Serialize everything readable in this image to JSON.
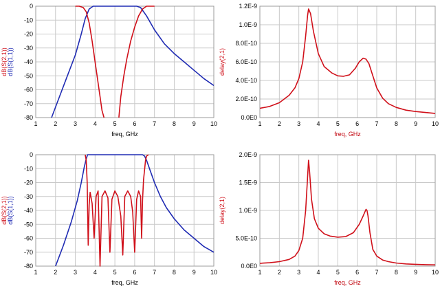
{
  "colors": {
    "blue": "#1f2bb3",
    "red": "#d0101a",
    "grid": "#c9c9c9",
    "frame": "#9b9b9b"
  },
  "chart_data": [
    {
      "type": "line",
      "xlabel": "freq, GHz",
      "ylabels": [
        {
          "text": "dB(S(2,1))",
          "color": "red"
        },
        {
          "text": "dB(S(1,1))",
          "color": "blue"
        }
      ],
      "xlim": [
        1,
        10
      ],
      "ylim": [
        -80,
        0
      ],
      "xticks": [
        "1",
        "2",
        "3",
        "4",
        "5",
        "6",
        "7",
        "8",
        "9",
        "10"
      ],
      "yticks": [
        "0",
        "-10",
        "-20",
        "-30",
        "-40",
        "-50",
        "-60",
        "-70",
        "-80"
      ],
      "series": [
        {
          "color": "blue",
          "x": [
            1.8,
            2.2,
            2.6,
            3.0,
            3.3,
            3.5,
            3.7,
            3.9,
            4.2,
            5.0,
            5.8,
            6.1,
            6.3,
            6.6,
            7.0,
            7.5,
            8.0,
            8.5,
            9.0,
            9.5,
            10.0
          ],
          "y": [
            -80,
            -65,
            -50,
            -35,
            -20,
            -9,
            -2,
            0,
            0,
            0,
            0,
            0,
            -1,
            -7,
            -17,
            -27,
            -34,
            -40,
            -46,
            -52,
            -57
          ]
        },
        {
          "color": "red",
          "x": [
            3.0,
            3.2,
            3.4,
            3.55,
            3.7,
            3.85,
            4.0,
            4.2,
            4.35,
            4.45
          ],
          "y": [
            0,
            0,
            -1,
            -4,
            -12,
            -25,
            -40,
            -60,
            -75,
            -80
          ]
        },
        {
          "color": "red",
          "x": [
            5.2,
            5.3,
            5.45,
            5.6,
            5.8,
            6.0,
            6.2,
            6.4,
            6.6,
            6.8,
            7.0
          ],
          "y": [
            -80,
            -65,
            -50,
            -38,
            -25,
            -15,
            -7,
            -2,
            0,
            0,
            0
          ]
        }
      ]
    },
    {
      "type": "line",
      "xlabel": "freq, GHz",
      "ylabels": [
        {
          "text": "delay(2,1)",
          "color": "red"
        }
      ],
      "xlim": [
        1,
        10
      ],
      "ylim": [
        0,
        1.2e-09
      ],
      "xticks": [
        "1",
        "2",
        "3",
        "4",
        "5",
        "6",
        "7",
        "8",
        "9",
        "10"
      ],
      "yticks": [
        "1.2E-9",
        "1.0E-9",
        "8.0E-10",
        "6.0E-10",
        "4.0E-10",
        "2.0E-10",
        "0.0E0"
      ],
      "series": [
        {
          "color": "red",
          "x": [
            1.0,
            1.5,
            2.0,
            2.5,
            2.8,
            3.0,
            3.2,
            3.35,
            3.45,
            3.5,
            3.6,
            3.75,
            4.0,
            4.3,
            4.7,
            5.0,
            5.3,
            5.6,
            5.9,
            6.1,
            6.3,
            6.45,
            6.6,
            6.8,
            7.0,
            7.3,
            7.6,
            8.0,
            8.5,
            9.0,
            9.5,
            10.0
          ],
          "y": [
            1e-10,
            1.2e-10,
            1.6e-10,
            2.4e-10,
            3.2e-10,
            4.2e-10,
            6e-10,
            8.8e-10,
            1.1e-09,
            1.17e-09,
            1.12e-09,
            9.3e-10,
            6.9e-10,
            5.5e-10,
            4.8e-10,
            4.5e-10,
            4.45e-10,
            4.6e-10,
            5.3e-10,
            6e-10,
            6.4e-10,
            6.3e-10,
            5.8e-10,
            4.5e-10,
            3.2e-10,
            2.1e-10,
            1.5e-10,
            1.1e-10,
            8e-11,
            6.5e-11,
            5.5e-11,
            4.5e-11
          ]
        }
      ]
    },
    {
      "type": "line",
      "xlabel": "freq, GHz",
      "ylabels": [
        {
          "text": "dB(S(2,1))",
          "color": "red"
        },
        {
          "text": "dB(S(1,1))",
          "color": "blue"
        }
      ],
      "xlim": [
        1,
        10
      ],
      "ylim": [
        -80,
        0
      ],
      "xticks": [
        "1",
        "2",
        "3",
        "4",
        "5",
        "6",
        "7",
        "8",
        "9",
        "10"
      ],
      "yticks": [
        "0",
        "-10",
        "-20",
        "-30",
        "-40",
        "-50",
        "-60",
        "-70",
        "-80"
      ],
      "series": [
        {
          "color": "blue",
          "x": [
            2.0,
            2.4,
            2.8,
            3.1,
            3.3,
            3.45,
            3.55,
            3.62,
            3.7,
            6.3,
            6.4,
            6.5,
            6.6,
            6.8,
            7.0,
            7.3,
            7.6,
            8.0,
            8.5,
            9.0,
            9.5,
            10.0
          ],
          "y": [
            -80,
            -65,
            -48,
            -33,
            -20,
            -9,
            -3,
            0,
            0,
            0,
            0,
            -1,
            -4,
            -12,
            -20,
            -30,
            -38,
            -46,
            -54,
            -60,
            -66,
            -70
          ]
        },
        {
          "color": "red",
          "x": [
            3.5,
            3.55,
            3.6,
            3.65,
            3.7,
            3.75,
            3.85,
            3.95,
            4.05,
            4.15,
            4.25,
            4.35,
            4.5,
            4.65,
            4.75,
            4.85,
            5.0,
            5.15,
            5.3,
            5.4,
            5.5,
            5.65,
            5.8,
            5.9,
            6.0,
            6.1,
            6.2,
            6.3,
            6.35,
            6.4,
            6.45,
            6.55,
            6.6,
            6.7
          ],
          "y": [
            0,
            -4,
            -20,
            -65,
            -36,
            -27,
            -35,
            -60,
            -30,
            -26,
            -80,
            -30,
            -26,
            -31,
            -70,
            -32,
            -26,
            -30,
            -44,
            -72,
            -30,
            -26,
            -30,
            -41,
            -70,
            -32,
            -26,
            -30,
            -60,
            -32,
            -18,
            -4,
            -1,
            0
          ]
        }
      ]
    },
    {
      "type": "line",
      "xlabel": "freq, GHz",
      "ylabels": [
        {
          "text": "delay(2,1)",
          "color": "red"
        }
      ],
      "xlim": [
        1,
        10
      ],
      "ylim": [
        0,
        2e-09
      ],
      "xticks": [
        "1",
        "2",
        "3",
        "4",
        "5",
        "6",
        "7",
        "8",
        "9",
        "10"
      ],
      "yticks": [
        "2.0E-9",
        "1.5E-9",
        "1.0E-9",
        "5.0E-10",
        "0.0E0"
      ],
      "series": [
        {
          "color": "red",
          "x": [
            1.0,
            1.5,
            2.0,
            2.5,
            2.8,
            3.0,
            3.2,
            3.35,
            3.45,
            3.5,
            3.55,
            3.65,
            3.8,
            4.0,
            4.3,
            4.6,
            5.0,
            5.4,
            5.8,
            6.1,
            6.3,
            6.45,
            6.5,
            6.55,
            6.65,
            6.8,
            7.0,
            7.3,
            7.6,
            8.0,
            8.5,
            9.0,
            9.5,
            10.0
          ],
          "y": [
            5e-11,
            6e-11,
            8e-11,
            1.2e-10,
            1.8e-10,
            2.8e-10,
            5e-10,
            1e-09,
            1.6e-09,
            1.9e-09,
            1.7e-09,
            1.2e-09,
            8.5e-10,
            6.8e-10,
            5.8e-10,
            5.4e-10,
            5.2e-10,
            5.3e-10,
            6e-10,
            7.5e-10,
            9e-10,
            1.02e-09,
            1e-09,
            9e-10,
            6e-10,
            3e-10,
            1.8e-10,
            1.1e-10,
            8e-11,
            5.5e-11,
            4e-11,
            3.2e-11,
            2.6e-11,
            2.2e-11
          ]
        }
      ]
    }
  ]
}
